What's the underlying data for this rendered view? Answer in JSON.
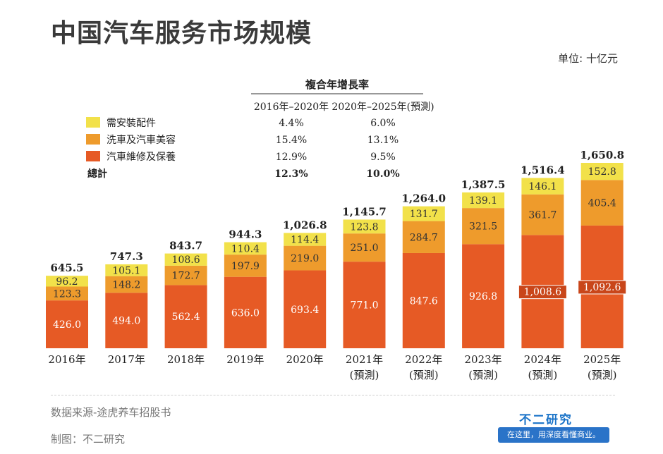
{
  "title": "中国汽车服务市场规模",
  "unit": "单位: 十亿元",
  "cagr_table": {
    "header": "複合年增長率",
    "col1": "2016年–2020年",
    "col2": "2020年–2025年(預測)",
    "rows": [
      {
        "label": "需安裝配件",
        "c1": "4.4%",
        "c2": "6.0%",
        "color": "#f2e14a"
      },
      {
        "label": "洗車及汽車美容",
        "c1": "15.4%",
        "c2": "13.1%",
        "color": "#ee9b2c"
      },
      {
        "label": "汽車維修及保養",
        "c1": "12.9%",
        "c2": "9.5%",
        "color": "#e65a25"
      },
      {
        "label": "總計",
        "c1": "12.3%",
        "c2": "10.0%",
        "color": ""
      }
    ]
  },
  "chart_data": {
    "type": "bar",
    "stacked": true,
    "title": "中国汽车服务市场规模",
    "categories": [
      "2016年",
      "2017年",
      "2018年",
      "2019年",
      "2020年",
      "2021年",
      "2022年",
      "2023年",
      "2024年",
      "2025年"
    ],
    "category_sublabels": [
      "",
      "",
      "",
      "",
      "",
      "(預測)",
      "(預測)",
      "(預測)",
      "(預測)",
      "(預測)"
    ],
    "series": [
      {
        "name": "汽車維修及保養",
        "color": "#e65a25",
        "values": [
          426.0,
          494.0,
          562.4,
          636.0,
          693.4,
          771.0,
          847.6,
          926.8,
          1008.6,
          1092.6
        ],
        "labels": [
          "426.0",
          "494.0",
          "562.4",
          "636.0",
          "693.4",
          "771.0",
          "847.6",
          "926.8",
          "1,008.6",
          "1,092.6"
        ]
      },
      {
        "name": "洗車及汽車美容",
        "color": "#ee9b2c",
        "values": [
          123.3,
          148.2,
          172.7,
          197.9,
          219.0,
          251.0,
          284.7,
          321.5,
          361.7,
          405.4
        ],
        "labels": [
          "123.3",
          "148.2",
          "172.7",
          "197.9",
          "219.0",
          "251.0",
          "284.7",
          "321.5",
          "361.7",
          "405.4"
        ]
      },
      {
        "name": "需安裝配件",
        "color": "#f2e14a",
        "values": [
          96.2,
          105.1,
          108.6,
          110.4,
          114.4,
          123.8,
          131.7,
          139.1,
          146.1,
          152.8
        ],
        "labels": [
          "96.2",
          "105.1",
          "108.6",
          "110.4",
          "114.4",
          "123.8",
          "131.7",
          "139.1",
          "146.1",
          "152.8"
        ]
      }
    ],
    "totals": [
      645.5,
      747.3,
      843.7,
      944.3,
      1026.8,
      1145.7,
      1264.0,
      1387.5,
      1516.4,
      1650.8
    ],
    "total_labels": [
      "645.5",
      "747.3",
      "843.7",
      "944.3",
      "1,026.8",
      "1,145.7",
      "1,264.0",
      "1,387.5",
      "1,516.4",
      "1,650.8"
    ],
    "ylim": [
      0,
      1650.8
    ]
  },
  "footer": {
    "source": "数据来源-途虎养车招股书",
    "maker": "制图：不二研究",
    "brand": "不二研究",
    "slogan": "在这里，用深度看懂商业。"
  }
}
